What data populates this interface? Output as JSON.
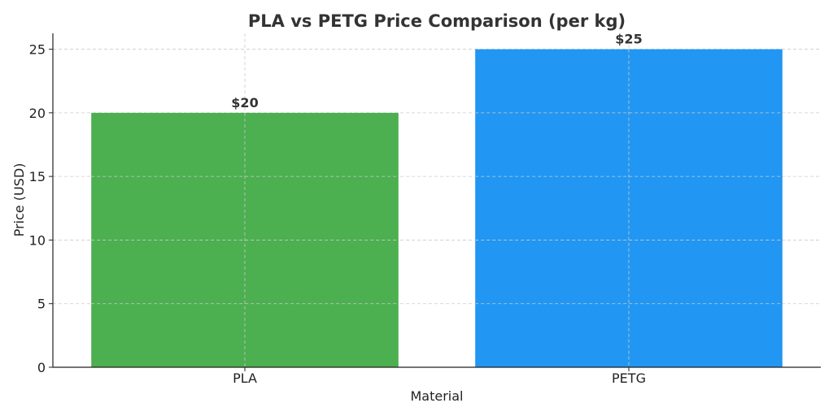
{
  "chart_data": {
    "type": "bar",
    "title": "PLA vs PETG Price Comparison (per kg)",
    "xlabel": "Material",
    "ylabel": "Price (USD)",
    "categories": [
      "PLA",
      "PETG"
    ],
    "values": [
      20,
      25
    ],
    "data_labels": [
      "$20",
      "$25"
    ],
    "colors": [
      "#4caf50",
      "#2196f3"
    ],
    "ylim": [
      0,
      26.25
    ],
    "yticks": [
      0,
      5,
      10,
      15,
      20,
      25
    ],
    "grid": true,
    "legend": "none"
  }
}
